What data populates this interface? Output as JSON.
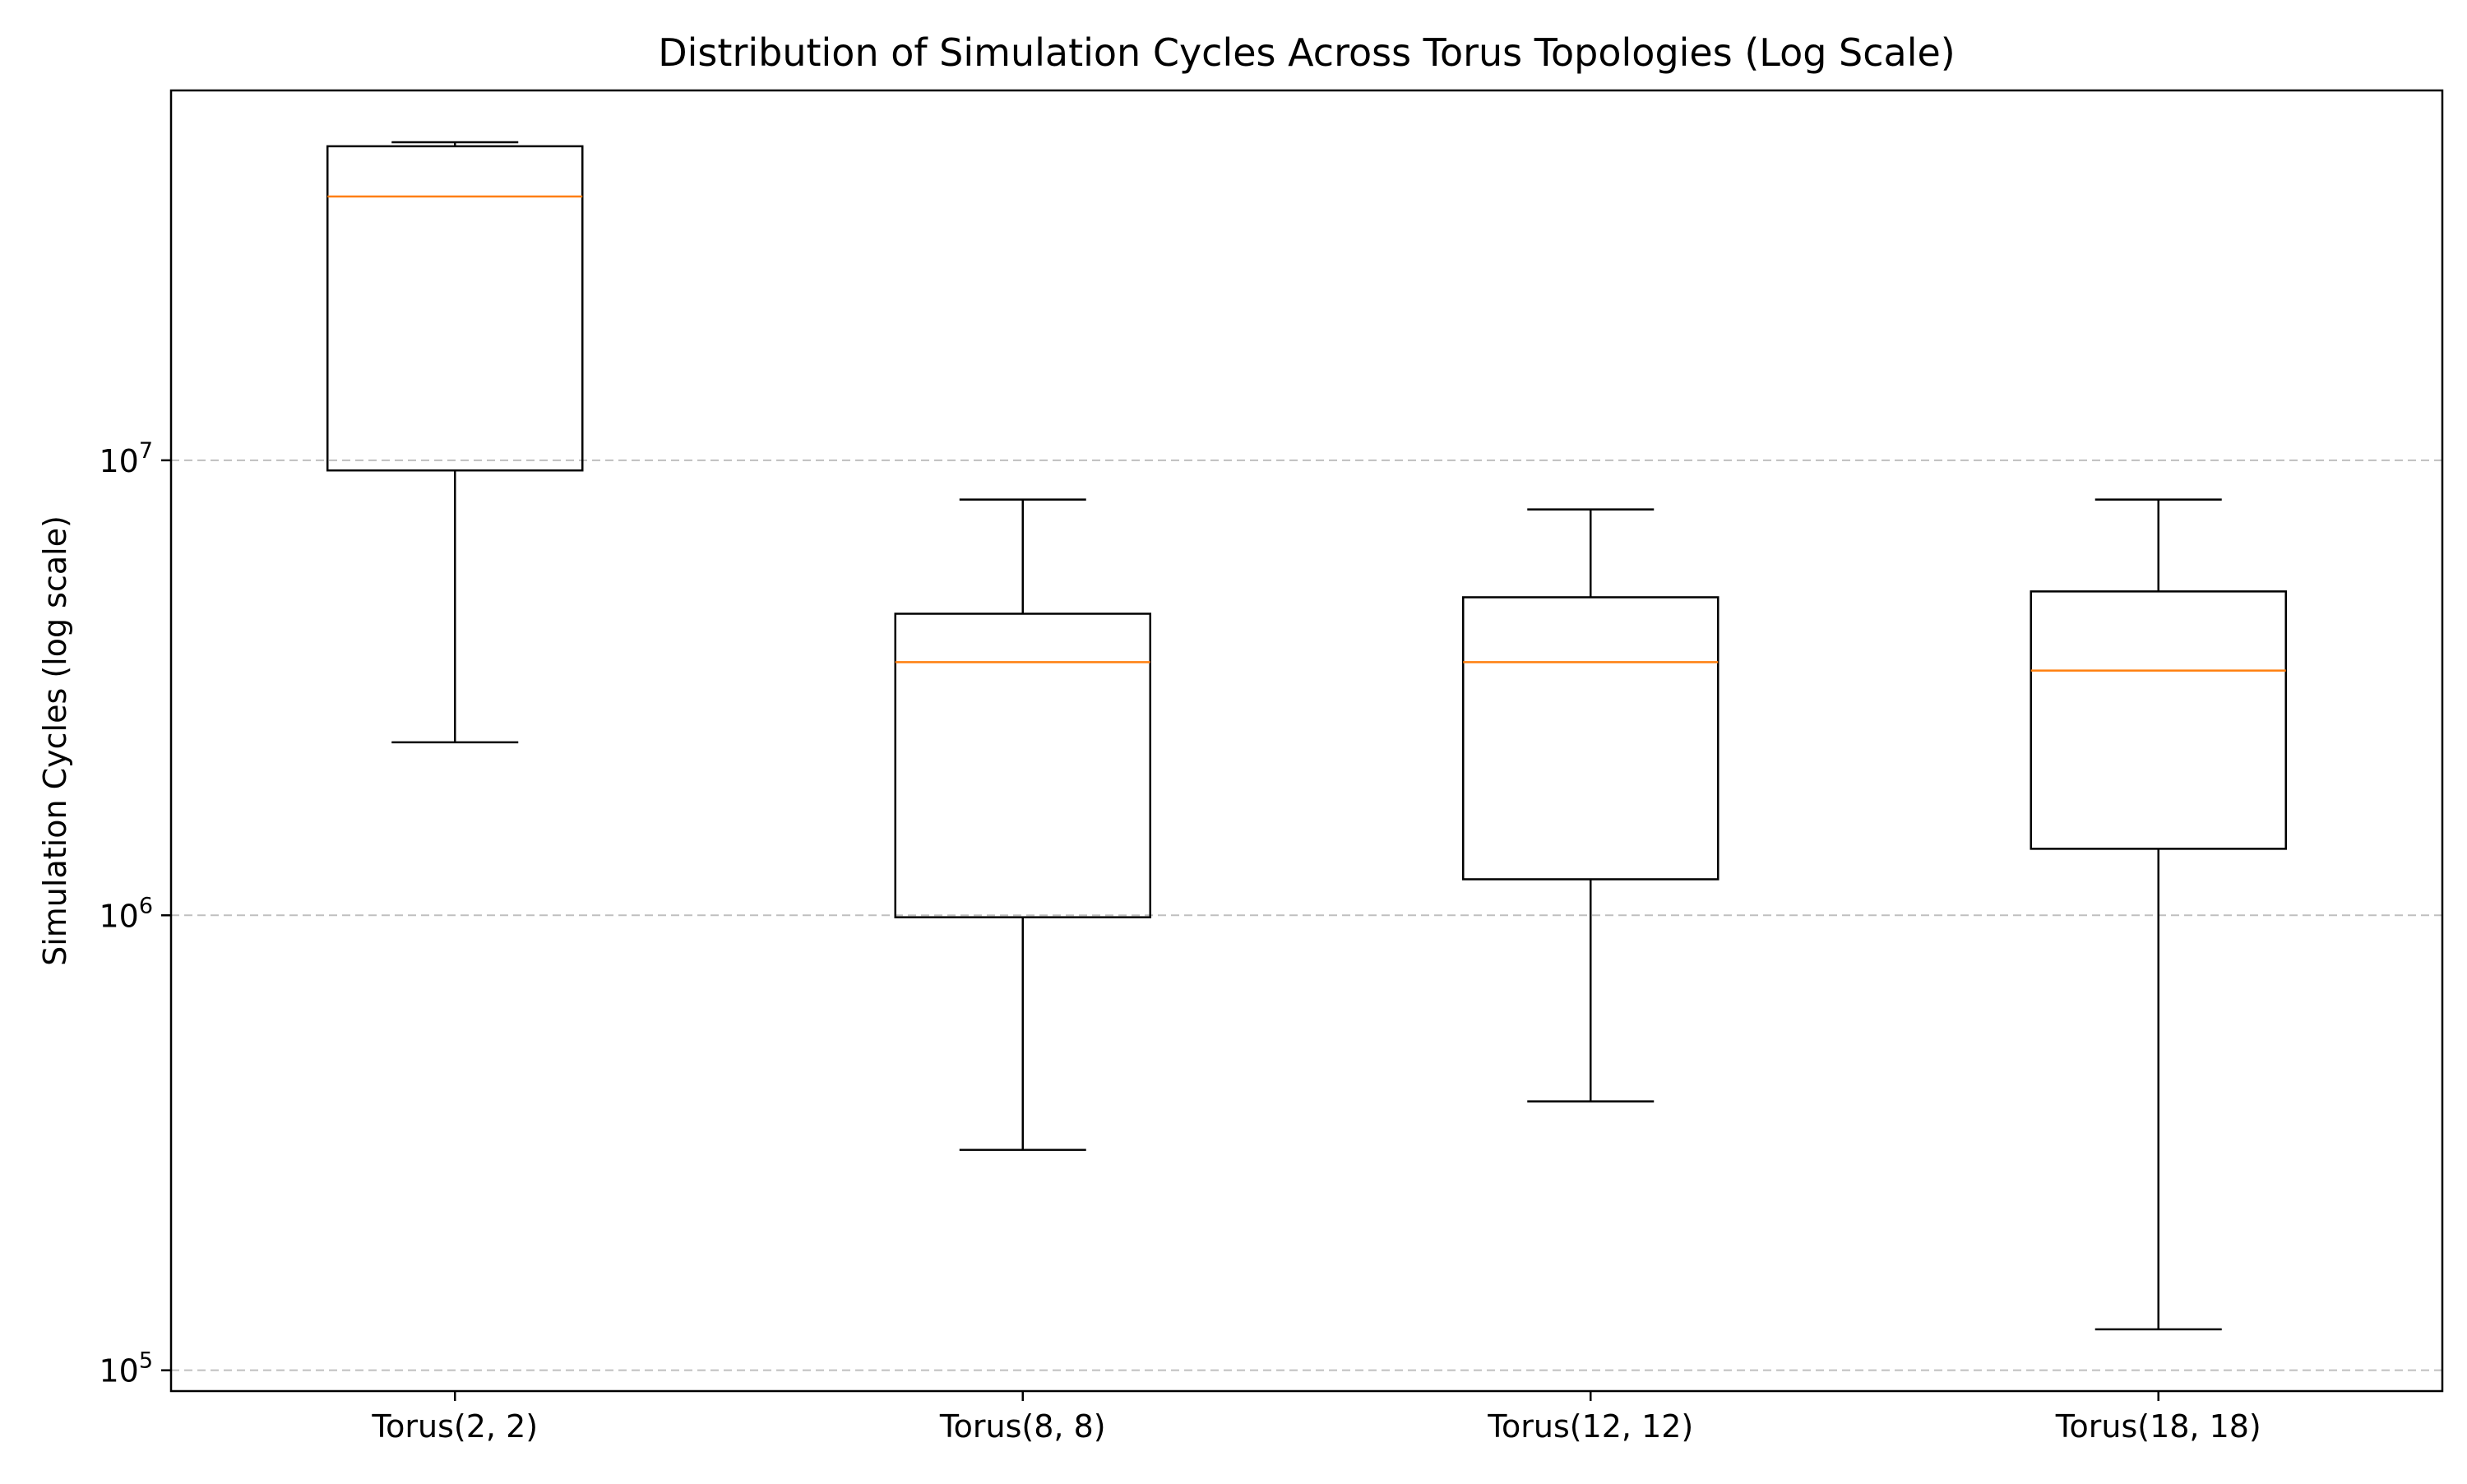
{
  "chart_data": {
    "type": "box",
    "title": "Distribution of Simulation Cycles Across Torus Topologies (Log Scale)",
    "xlabel": "",
    "ylabel": "Simulation Cycles (log scale)",
    "yscale": "log",
    "ylim": [
      90000,
      65000000
    ],
    "grid": {
      "axis": "y",
      "style": "dashed",
      "on": true
    },
    "yticks": [
      {
        "value": 100000,
        "base": "10",
        "exp": "5"
      },
      {
        "value": 1000000,
        "base": "10",
        "exp": "6"
      },
      {
        "value": 10000000,
        "base": "10",
        "exp": "7"
      }
    ],
    "categories": [
      "Torus(2, 2)",
      "Torus(8, 8)",
      "Torus(12, 12)",
      "Torus(18, 18)"
    ],
    "boxes": [
      {
        "category": "Torus(2, 2)",
        "whisker_low": 2400000,
        "q1": 9500000,
        "median": 38000000,
        "q3": 49000000,
        "whisker_high": 50000000
      },
      {
        "category": "Torus(8, 8)",
        "whisker_low": 305000,
        "q1": 990000,
        "median": 3600000,
        "q3": 4600000,
        "whisker_high": 8200000
      },
      {
        "category": "Torus(12, 12)",
        "whisker_low": 390000,
        "q1": 1200000,
        "median": 3600000,
        "q3": 5000000,
        "whisker_high": 7800000
      },
      {
        "category": "Torus(18, 18)",
        "whisker_low": 123000,
        "q1": 1400000,
        "median": 3450000,
        "q3": 5150000,
        "whisker_high": 8200000
      }
    ],
    "colors": {
      "box": "#000000",
      "median": "#ff7f0e",
      "grid": "#b0b0b0"
    }
  }
}
